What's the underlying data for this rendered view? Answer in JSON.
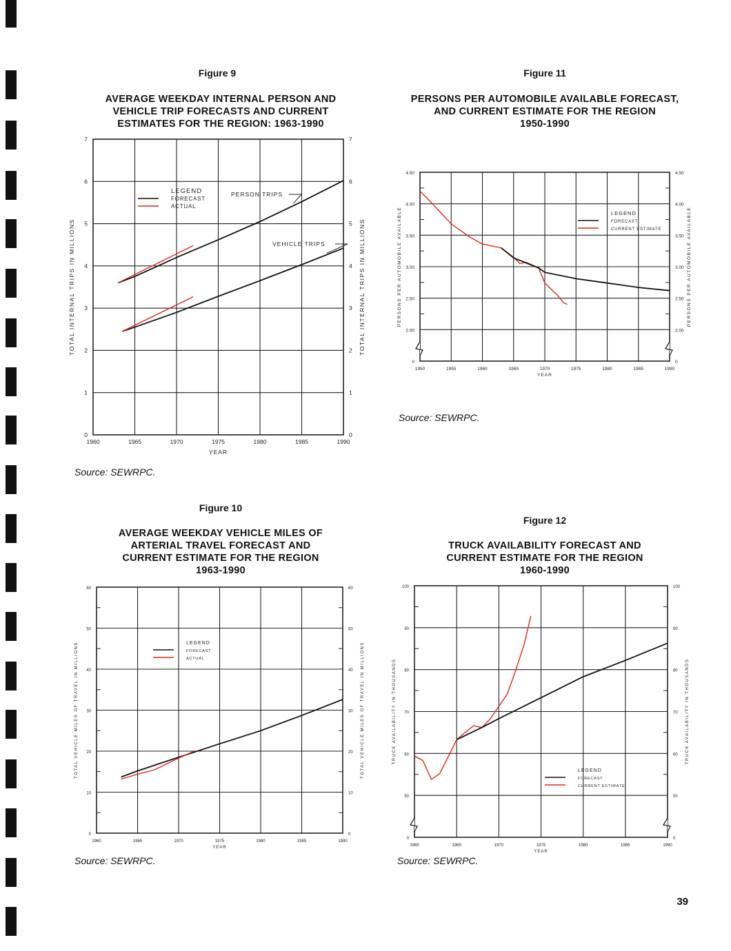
{
  "page_number": "39",
  "colors": {
    "forecast": "#111111",
    "actual": "#e0241b",
    "grid": "#222222"
  },
  "figures": [
    {
      "figure_label": "Figure 9",
      "title_lines": [
        "AVERAGE WEEKDAY INTERNAL PERSON AND",
        "VEHICLE TRIP FORECASTS AND CURRENT",
        "ESTIMATES FOR THE REGION: 1963-1990"
      ],
      "source": "Source:  SEWRPC."
    },
    {
      "figure_label": "Figure 11",
      "title_lines": [
        "PERSONS PER AUTOMOBILE AVAILABLE FORECAST,",
        "AND CURRENT ESTIMATE FOR THE REGION",
        "1950-1990"
      ],
      "source": "Source:  SEWRPC."
    },
    {
      "figure_label": "Figure 10",
      "title_lines": [
        "AVERAGE WEEKDAY VEHICLE MILES OF",
        "ARTERIAL TRAVEL FORECAST AND",
        "CURRENT ESTIMATE FOR THE REGION",
        "1963-1990"
      ],
      "source": "Source:  SEWRPC."
    },
    {
      "figure_label": "Figure 12",
      "title_lines": [
        "TRUCK AVAILABILITY FORECAST AND",
        "CURRENT ESTIMATE FOR THE REGION",
        "1960-1990"
      ],
      "source": "Source:  SEWRPC."
    }
  ],
  "chart_data": [
    {
      "type": "line",
      "title": "Figure 9",
      "xlabel": "YEAR",
      "ylabel": "TOTAL INTERNAL TRIPS IN MILLIONS",
      "xlim": [
        1960,
        1990
      ],
      "ylim": [
        0,
        7
      ],
      "axis_break": false,
      "x_ticks": [
        1960,
        1965,
        1970,
        1975,
        1980,
        1985,
        1990
      ],
      "x_tick_labels": [
        "1960",
        "1965",
        "1970",
        "1975",
        "1980",
        "1985",
        "1990"
      ],
      "y_ticks": [
        0,
        1,
        2,
        3,
        4,
        5,
        6,
        7
      ],
      "y_tick_labels": [
        "0",
        "1",
        "2",
        "3",
        "4",
        "5",
        "6",
        "7"
      ],
      "minor_y_ticks": [],
      "legend": {
        "title": "LEGEND",
        "entries": [
          "FORECAST",
          "ACTUAL"
        ],
        "placement": "upper-left"
      },
      "annotations": [
        "PERSON TRIPS",
        "VEHICLE TRIPS"
      ],
      "series": [
        {
          "name": "Person trips forecast",
          "kind": "forecast",
          "x": [
            1963,
            1965,
            1970,
            1975,
            1980,
            1985,
            1990
          ],
          "y": [
            3.6,
            3.75,
            4.2,
            4.62,
            5.05,
            5.52,
            6.02
          ]
        },
        {
          "name": "Person trips actual",
          "kind": "actual",
          "x": [
            1963,
            1972
          ],
          "y": [
            3.6,
            4.48
          ]
        },
        {
          "name": "Vehicle trips forecast",
          "kind": "forecast",
          "x": [
            1963.5,
            1965,
            1970,
            1975,
            1980,
            1985,
            1990
          ],
          "y": [
            2.45,
            2.55,
            2.9,
            3.28,
            3.65,
            4.03,
            4.42
          ]
        },
        {
          "name": "Vehicle trips actual",
          "kind": "actual",
          "x": [
            1963.5,
            1972
          ],
          "y": [
            2.45,
            3.27
          ]
        }
      ]
    },
    {
      "type": "line",
      "title": "Figure 11",
      "xlabel": "YEAR",
      "ylabel": "PERSONS PER AUTOMOBILE AVAILABLE",
      "xlim": [
        1950,
        1990
      ],
      "ylim": [
        0,
        4.5
      ],
      "axis_break": true,
      "x_ticks": [
        1950,
        1955,
        1960,
        1965,
        1970,
        1975,
        1980,
        1985,
        1990
      ],
      "x_tick_labels": [
        "1950",
        "1955",
        "1960",
        "1965",
        "1970",
        "1975",
        "1980",
        "1985",
        "1990"
      ],
      "y_ticks": [
        0,
        2.0,
        2.5,
        3.0,
        3.5,
        4.0,
        4.5
      ],
      "y_tick_labels": [
        "0",
        "2.00",
        "2.50",
        "3.00",
        "3.50",
        "4.00",
        "4.50"
      ],
      "minor_y_ticks": [
        2.25,
        2.75,
        3.25,
        3.75,
        4.25
      ],
      "legend": {
        "title": "LEGEND",
        "entries": [
          "FORECAST",
          "CURRENT ESTIMATE"
        ],
        "placement": "upper-right"
      },
      "annotations": [],
      "series": [
        {
          "name": "Current estimate",
          "kind": "actual",
          "x": [
            1950,
            1952,
            1955,
            1958,
            1960,
            1963,
            1965,
            1966,
            1967,
            1969,
            1970,
            1972,
            1973,
            1973.6
          ],
          "y": [
            4.2,
            4.0,
            3.68,
            3.47,
            3.36,
            3.3,
            3.15,
            3.05,
            3.07,
            2.98,
            2.74,
            2.55,
            2.43,
            2.4
          ]
        },
        {
          "name": "Forecast",
          "kind": "forecast",
          "x": [
            1963,
            1965,
            1967,
            1969,
            1970,
            1975,
            1980,
            1985,
            1990
          ],
          "y": [
            3.3,
            3.14,
            3.06,
            2.98,
            2.91,
            2.81,
            2.74,
            2.67,
            2.62
          ]
        }
      ]
    },
    {
      "type": "line",
      "title": "Figure 10",
      "xlabel": "YEAR",
      "ylabel": "TOTAL VEHICLE MILES OF TRAVEL IN MILLIONS",
      "xlim": [
        1960,
        1990
      ],
      "ylim": [
        0,
        60
      ],
      "axis_break": false,
      "x_ticks": [
        1960,
        1965,
        1970,
        1975,
        1980,
        1985,
        1990
      ],
      "x_tick_labels": [
        "1960",
        "1965",
        "1970",
        "1975",
        "1980",
        "1985",
        "1990"
      ],
      "y_ticks": [
        0,
        10,
        20,
        30,
        40,
        50,
        60
      ],
      "y_tick_labels": [
        "0",
        "10",
        "20",
        "30",
        "40",
        "50",
        "60"
      ],
      "minor_y_ticks": [
        5,
        15,
        25,
        35,
        45,
        55
      ],
      "legend": {
        "title": "LEGEND",
        "entries": [
          "FORECAST",
          "ACTUAL"
        ],
        "placement": "upper-left"
      },
      "annotations": [],
      "series": [
        {
          "name": "Forecast",
          "kind": "forecast",
          "x": [
            1963,
            1965,
            1970,
            1975,
            1980,
            1985,
            1990
          ],
          "y": [
            13.7,
            15.2,
            18.5,
            21.8,
            25.0,
            28.7,
            32.6
          ]
        },
        {
          "name": "Actual",
          "kind": "actual",
          "x": [
            1963,
            1965,
            1967,
            1970,
            1972
          ],
          "y": [
            13.2,
            14.4,
            15.4,
            18.3,
            20.1
          ]
        }
      ]
    },
    {
      "type": "line",
      "title": "Figure 12",
      "xlabel": "YEAR",
      "ylabel": "TRUCK AVAILABILITY IN THOUSANDS",
      "xlim": [
        1960,
        1990
      ],
      "ylim": [
        0,
        100
      ],
      "axis_break": true,
      "x_ticks": [
        1960,
        1965,
        1970,
        1975,
        1980,
        1985,
        1990
      ],
      "x_tick_labels": [
        "1960",
        "1965",
        "1970",
        "1975",
        "1980",
        "1985",
        "1990"
      ],
      "y_ticks": [
        0,
        50,
        60,
        70,
        80,
        90,
        100
      ],
      "y_tick_labels": [
        "0",
        "50",
        "60",
        "70",
        "80",
        "90",
        "100"
      ],
      "minor_y_ticks": [
        55,
        65,
        75,
        85,
        95
      ],
      "legend": {
        "title": "LEGEND",
        "entries": [
          "FORECAST",
          "CURRENT ESTIMATE"
        ],
        "placement": "lower-center"
      },
      "annotations": [],
      "series": [
        {
          "name": "Current estimate",
          "kind": "actual",
          "x": [
            1960,
            1961,
            1962,
            1963,
            1964,
            1965,
            1966,
            1967,
            1968,
            1969,
            1970,
            1971,
            1972,
            1973,
            1973.8
          ],
          "y": [
            59.4,
            58.3,
            53.8,
            55.2,
            59.2,
            63.3,
            65.0,
            66.6,
            66.2,
            68.3,
            71.2,
            74.2,
            79.8,
            86.0,
            92.8
          ]
        },
        {
          "name": "Forecast",
          "kind": "forecast",
          "x": [
            1965,
            1968,
            1970,
            1975,
            1980,
            1985,
            1990
          ],
          "y": [
            63.3,
            66.2,
            68.3,
            73.3,
            78.3,
            82.2,
            86.3
          ]
        }
      ]
    }
  ]
}
